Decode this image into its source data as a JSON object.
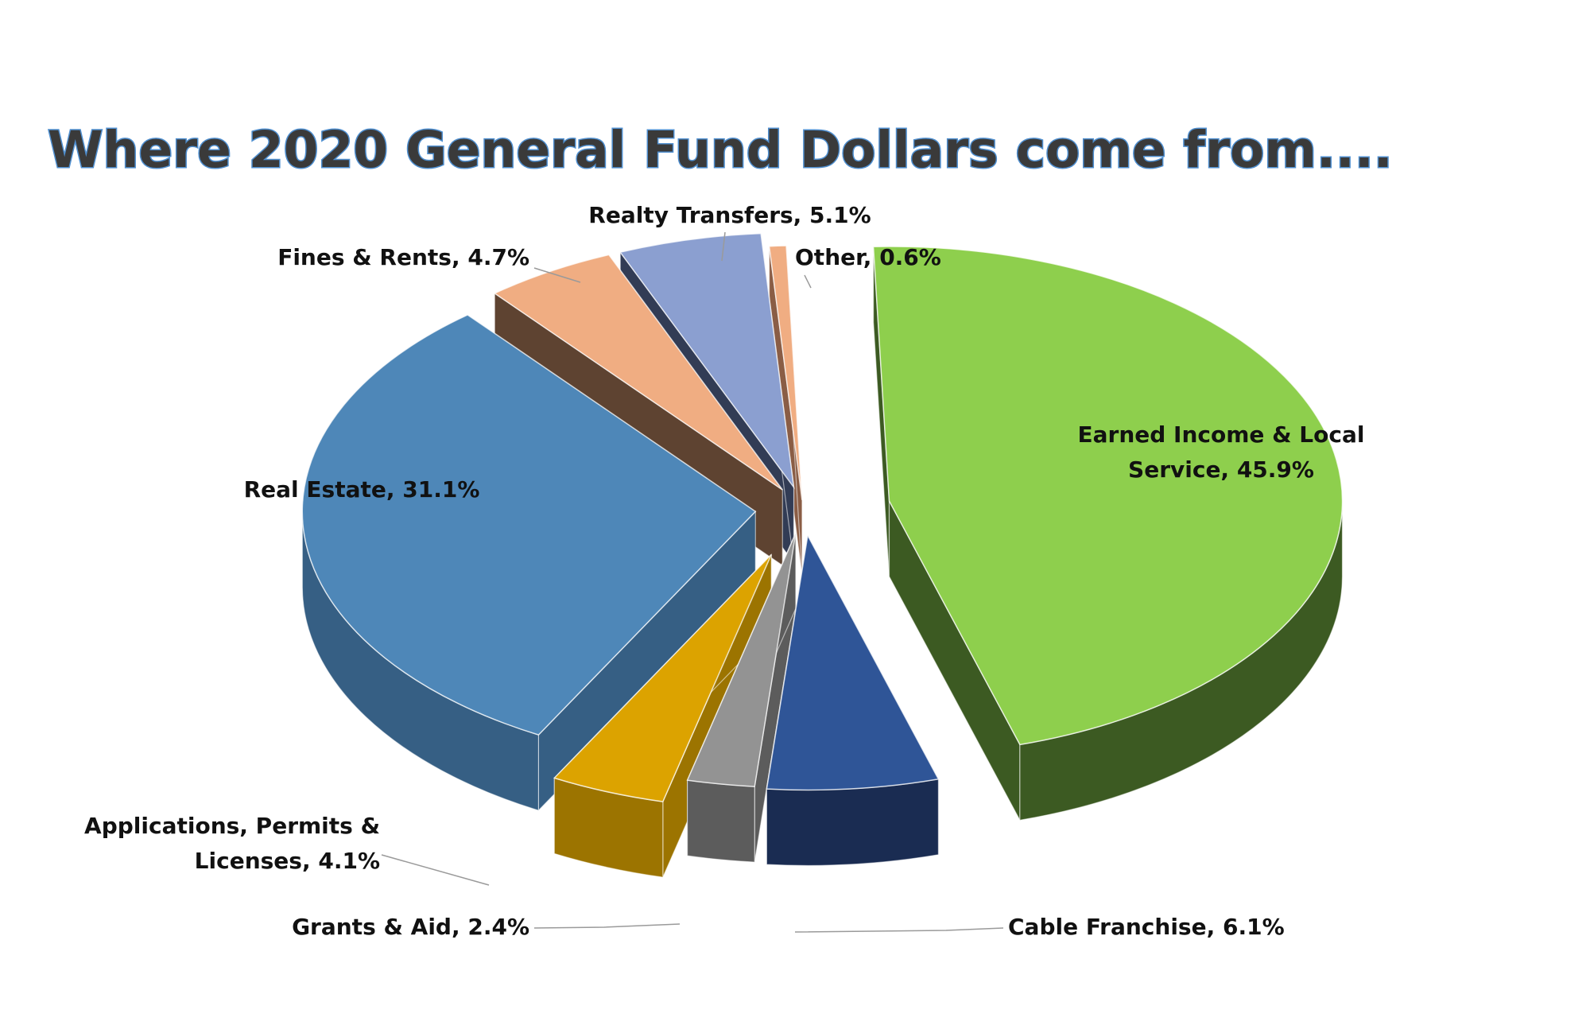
{
  "chart_data": {
    "type": "pie",
    "title": "Where 2020 General Fund Dollars come from....",
    "slices": [
      {
        "name": "Earned Income & Local Service",
        "value": 45.9,
        "label_lines": [
          "Earned Income & Local",
          "Service, 45.9%"
        ],
        "color": "#8ecf4d",
        "side_color": "#3c5a22"
      },
      {
        "name": "Cable Franchise",
        "value": 6.1,
        "label_lines": [
          "Cable Franchise, 6.1%"
        ],
        "color": "#2f5597",
        "side_color": "#1a2c52"
      },
      {
        "name": "Grants & Aid",
        "value": 2.4,
        "label_lines": [
          "Grants & Aid, 2.4%"
        ],
        "color": "#939393",
        "side_color": "#5c5c5c"
      },
      {
        "name": "Applications, Permits & Licenses",
        "value": 4.1,
        "label_lines": [
          "Applications, Permits &",
          "Licenses, 4.1%"
        ],
        "color": "#dca300",
        "side_color": "#9c7400"
      },
      {
        "name": "Real Estate",
        "value": 31.1,
        "label_lines": [
          "Real Estate, 31.1%"
        ],
        "color": "#4e87b8",
        "side_color": "#365f84"
      },
      {
        "name": "Fines & Rents",
        "value": 4.7,
        "label_lines": [
          "Fines & Rents, 4.7%"
        ],
        "color": "#f0ad82",
        "side_color": "#5e4331"
      },
      {
        "name": "Realty Transfers",
        "value": 5.1,
        "label_lines": [
          "Realty Transfers, 5.1%"
        ],
        "color": "#8b9fd0",
        "side_color": "#323c55"
      },
      {
        "name": "Other",
        "value": 0.6,
        "label_lines": [
          "Other, 0.6%"
        ],
        "color": "#f0ad82",
        "side_color": "#8a5d45"
      }
    ],
    "legend": "none",
    "grid": false
  }
}
